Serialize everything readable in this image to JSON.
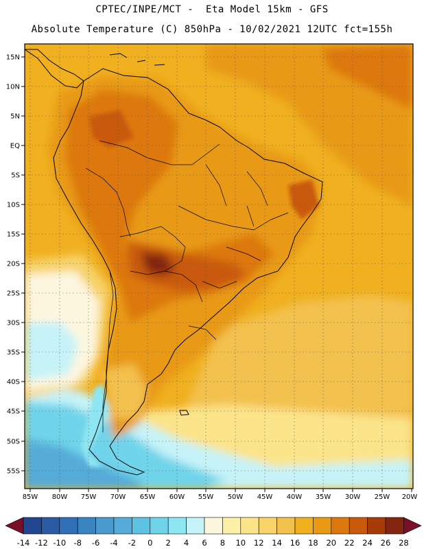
{
  "header": {
    "line1": "CPTEC/INPE/MCT -  Eta Model 15km - GFS",
    "line2": "Absolute Temperature (C) 850hPa - 10/02/2021 12UTC fct=155h"
  },
  "map": {
    "lat_labels": [
      "15N",
      "10N",
      "5N",
      "EQ",
      "5S",
      "10S",
      "15S",
      "20S",
      "25S",
      "30S",
      "35S",
      "40S",
      "45S",
      "50S",
      "55S"
    ],
    "lon_labels": [
      "85W",
      "80W",
      "75W",
      "70W",
      "65W",
      "60W",
      "55W",
      "50W",
      "45W",
      "40W",
      "35W",
      "30W",
      "25W",
      "20W"
    ],
    "lat_range": [
      -58,
      16
    ],
    "lon_range": [
      -86,
      -20
    ],
    "grid": "dotted",
    "regions": [
      {
        "name": "ocean-background",
        "temp": 18
      },
      {
        "name": "atlantic-north-warm",
        "temp": 20
      },
      {
        "name": "atlantic-north-core",
        "temp": 22
      },
      {
        "name": "south-atlantic-mid",
        "temp": 14
      },
      {
        "name": "south-atlantic-south",
        "temp": 10
      },
      {
        "name": "southern-ocean-cool",
        "temp": 6
      },
      {
        "name": "southern-ocean-cold",
        "temp": 2
      },
      {
        "name": "southern-ocean-coldest",
        "temp": -2
      },
      {
        "name": "pacific-cool-tongue",
        "temp": 8
      },
      {
        "name": "pacific-cold-core",
        "temp": 4
      },
      {
        "name": "pacific-mid",
        "temp": 12
      },
      {
        "name": "continent-warm",
        "temp": 20
      },
      {
        "name": "interior-hot",
        "temp": 22
      },
      {
        "name": "chaco-hotspot",
        "temp": 24
      },
      {
        "name": "chaco-peak",
        "temp": 26
      },
      {
        "name": "andes-cold",
        "temp": 4
      },
      {
        "name": "patagonia-mild",
        "temp": 14
      }
    ]
  },
  "colorbar": {
    "labels": [
      "-14",
      "-12",
      "-10",
      "-8",
      "-6",
      "-4",
      "-2",
      "0",
      "2",
      "4",
      "6",
      "8",
      "10",
      "12",
      "14",
      "16",
      "18",
      "20",
      "22",
      "24",
      "26",
      "28"
    ],
    "bins": [
      {
        "name": "below-neg14",
        "color": "#7a0f28"
      },
      {
        "name": "neg14-neg12",
        "color": "#21468f"
      },
      {
        "name": "neg12-neg10",
        "color": "#2a5ba3"
      },
      {
        "name": "neg10-neg8",
        "color": "#306fb5"
      },
      {
        "name": "neg8-neg6",
        "color": "#3a84c2"
      },
      {
        "name": "neg6-neg4",
        "color": "#4a9acd"
      },
      {
        "name": "neg4-neg2",
        "color": "#55acd8"
      },
      {
        "name": "neg2-0",
        "color": "#5ec2e3"
      },
      {
        "name": "0-2",
        "color": "#6fd4ea"
      },
      {
        "name": "2-4",
        "color": "#8ee6f2"
      },
      {
        "name": "4-6",
        "color": "#c6f3f8"
      },
      {
        "name": "6-8",
        "color": "#fdf6df"
      },
      {
        "name": "8-10",
        "color": "#fdf0a7"
      },
      {
        "name": "10-12",
        "color": "#fbe48a"
      },
      {
        "name": "12-14",
        "color": "#f7d36a"
      },
      {
        "name": "14-16",
        "color": "#f3c14e"
      },
      {
        "name": "16-18",
        "color": "#f0b020"
      },
      {
        "name": "18-20",
        "color": "#e89a12"
      },
      {
        "name": "20-22",
        "color": "#dc780e"
      },
      {
        "name": "22-24",
        "color": "#c95a0b"
      },
      {
        "name": "24-26",
        "color": "#a63d08"
      },
      {
        "name": "26-28",
        "color": "#83250f"
      },
      {
        "name": "above-28",
        "color": "#7a0f28"
      }
    ]
  }
}
